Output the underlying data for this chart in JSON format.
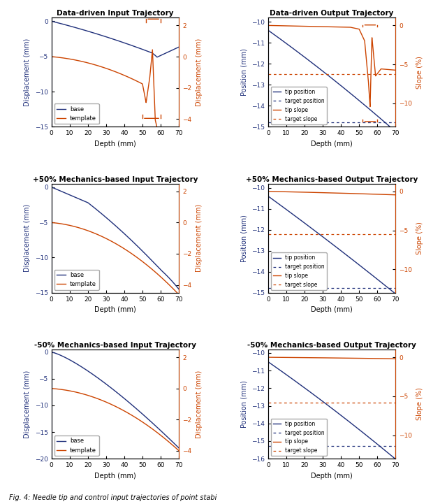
{
  "navy": "#1f2f7a",
  "orange": "#cc4400",
  "titles": [
    "Data-driven Input Trajectory",
    "Data-driven Output Trajectory",
    "+50% Mechanics-based Input Trajectory",
    "+50% Mechanics-based Output Trajectory",
    "-50% Mechanics-based Input Trajectory",
    "-50% Mechanics-based Output Trajectory"
  ],
  "xlabel": "Depth (mm)",
  "ylabel_disp_left": "Displacement (mm)",
  "ylabel_disp_right": "Displacement (mm)",
  "ylabel_pos": "Position (mm)",
  "ylabel_slope": "Slope (%)",
  "caption": "Fig. 4: Needle tip and control input trajectories of point stabi",
  "in_yleft_dd": [
    -15,
    0.5
  ],
  "in_yright_dd": [
    -4.5,
    2.5
  ],
  "in_yleft_p50": [
    -15,
    0.5
  ],
  "in_yright_p50": [
    -4.5,
    2.5
  ],
  "in_yleft_m50": [
    -20,
    0.5
  ],
  "in_yright_m50": [
    -4.5,
    2.5
  ],
  "out_yleft_dd": [
    -15,
    -9.8
  ],
  "out_yright_dd": [
    -13,
    1
  ],
  "out_yleft_p50": [
    -15,
    -9.8
  ],
  "out_yright_p50": [
    -13,
    1
  ],
  "out_yleft_m50": [
    -16,
    -9.8
  ],
  "out_yright_m50": [
    -13,
    1
  ]
}
